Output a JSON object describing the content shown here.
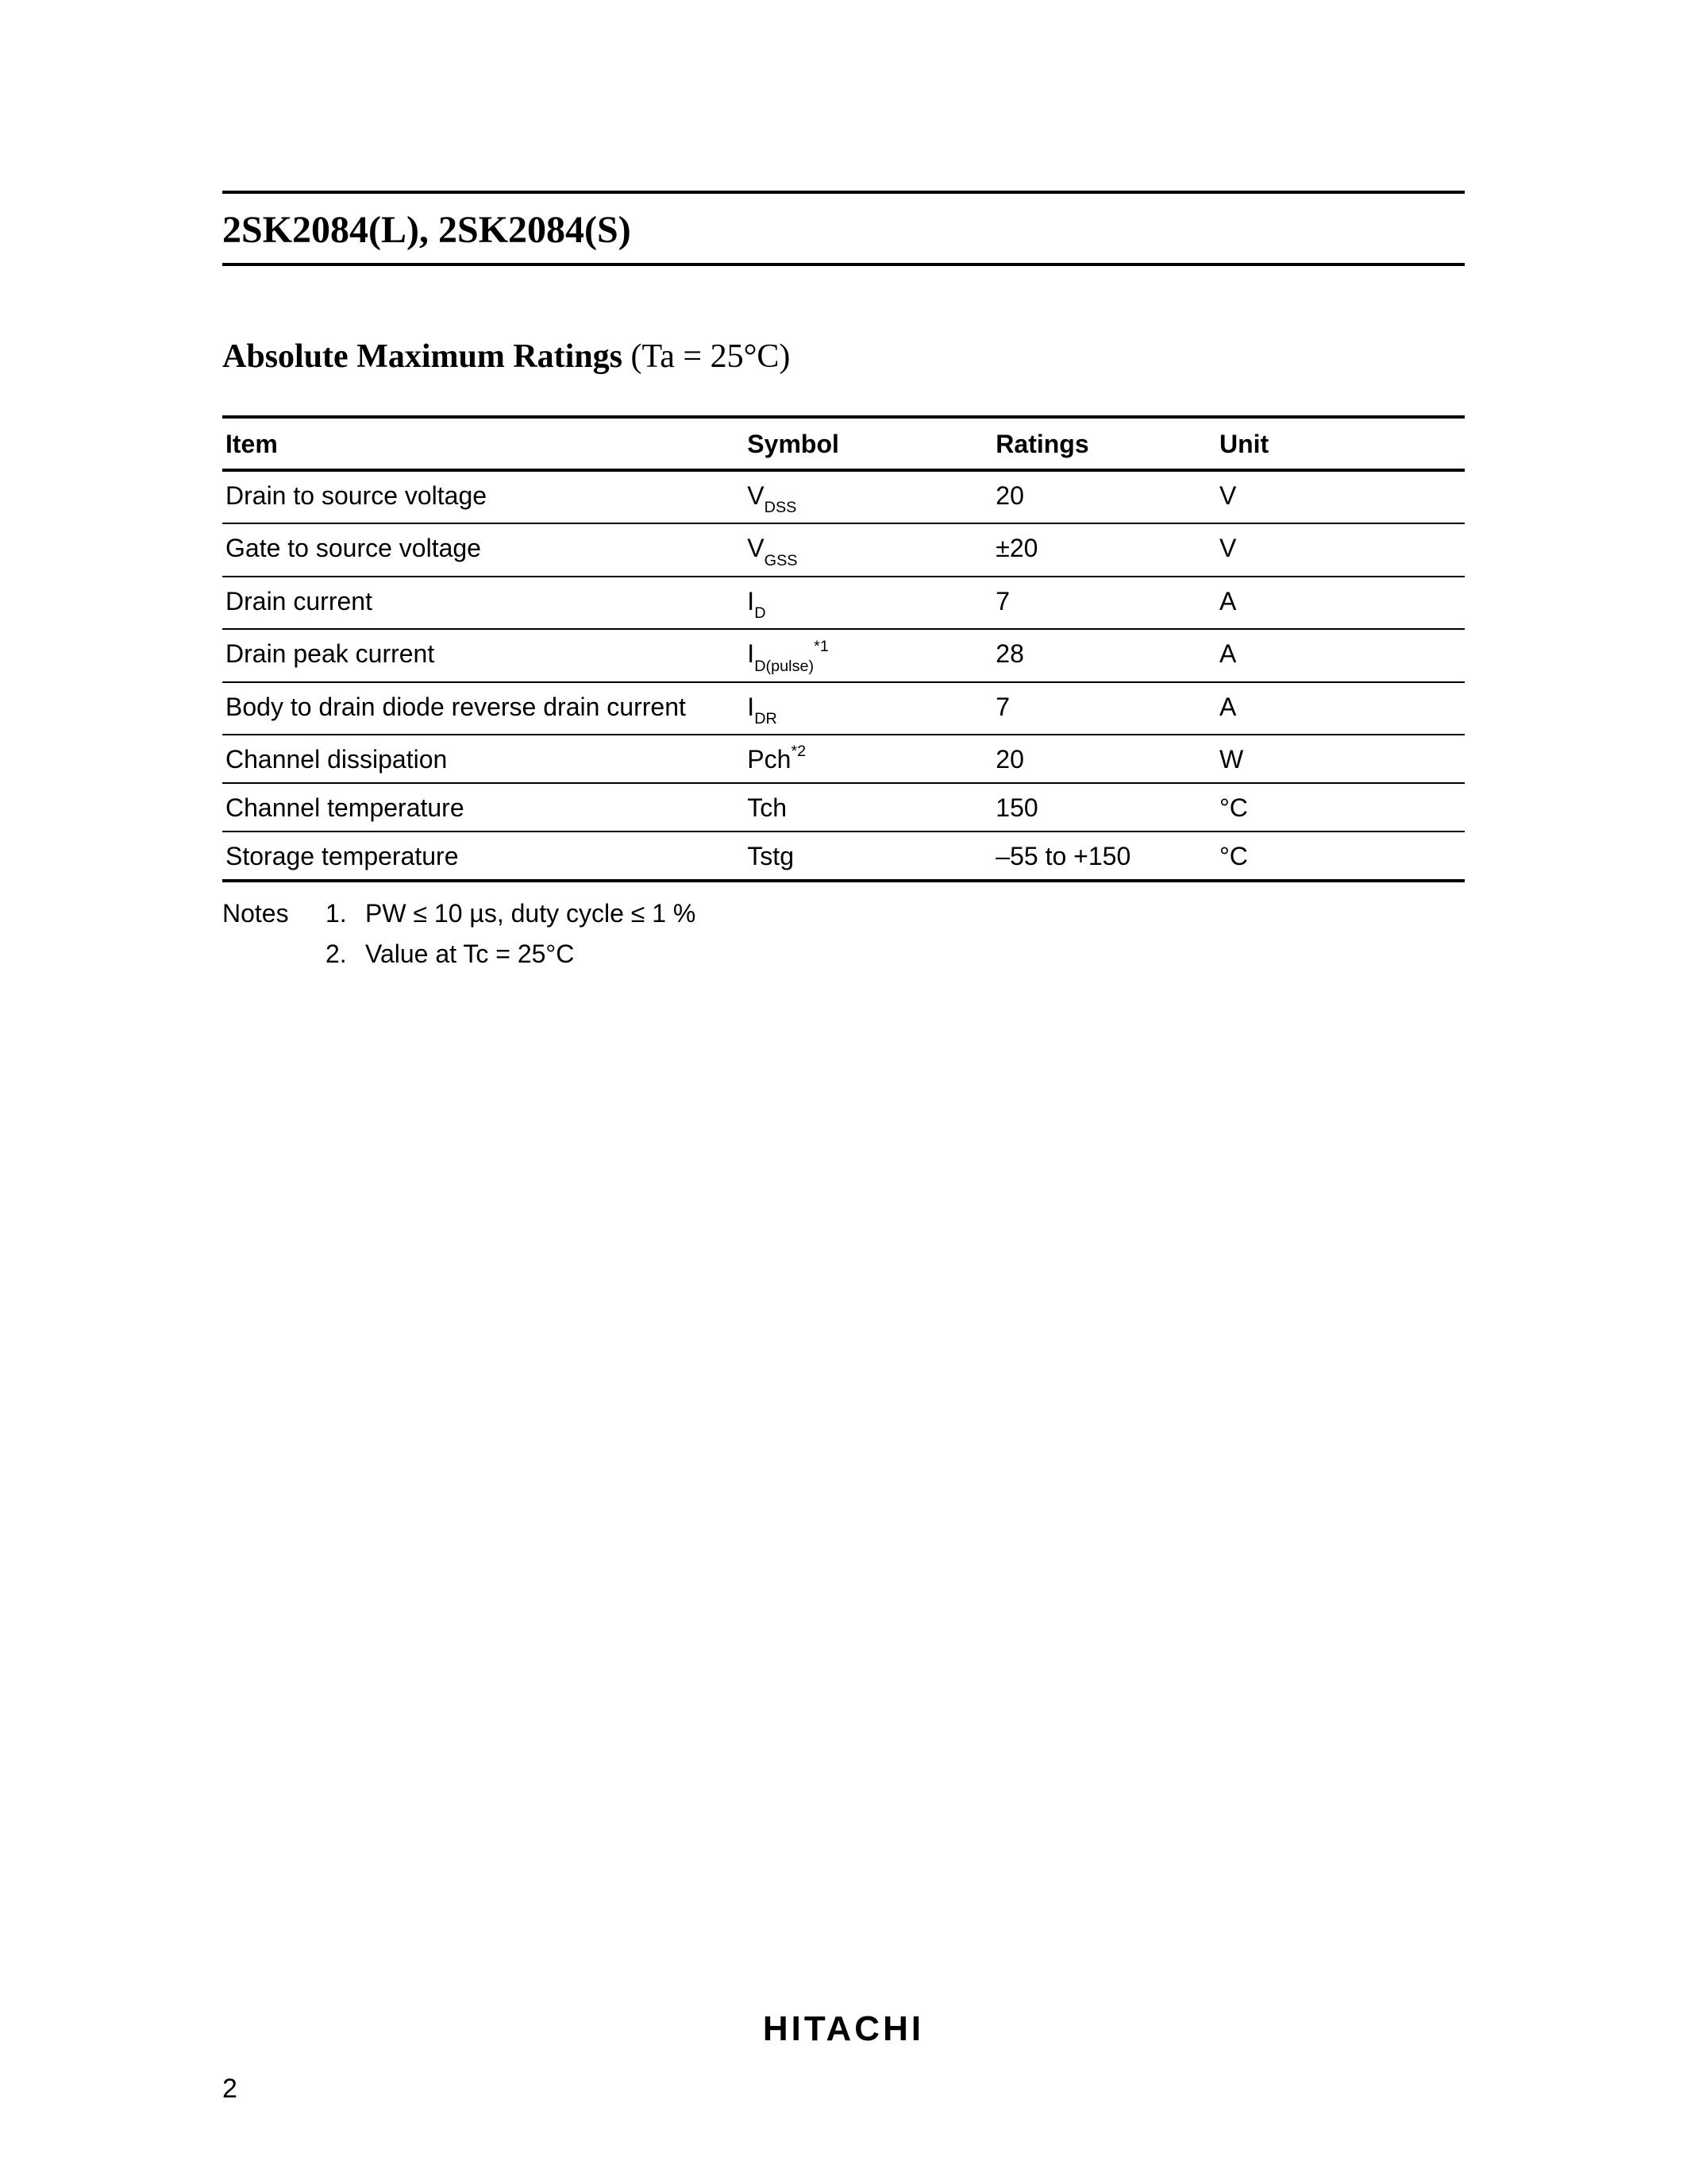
{
  "header": {
    "part_title": "2SK2084(L), 2SK2084(S)"
  },
  "section": {
    "title_bold": "Absolute Maximum Ratings",
    "title_cond": " (Ta = 25°C)"
  },
  "table": {
    "columns": [
      "Item",
      "Symbol",
      "Ratings",
      "Unit"
    ],
    "col_widths_pct": [
      42,
      20,
      18,
      20
    ],
    "header_border_color": "#000000",
    "row_border_color": "#000000",
    "header_fontsize": 32,
    "cell_fontsize": 32,
    "rows": [
      {
        "item": "Drain to source voltage",
        "symbol_main": "V",
        "symbol_sub": "DSS",
        "symbol_sup": "",
        "ratings": "20",
        "unit": "V"
      },
      {
        "item": "Gate to source voltage",
        "symbol_main": "V",
        "symbol_sub": "GSS",
        "symbol_sup": "",
        "ratings": "±20",
        "unit": "V"
      },
      {
        "item": "Drain current",
        "symbol_main": "I",
        "symbol_sub": "D",
        "symbol_sup": "",
        "ratings": "7",
        "unit": "A"
      },
      {
        "item": "Drain peak current",
        "symbol_main": "I",
        "symbol_sub": "D(pulse)",
        "symbol_sup": "*1",
        "ratings": "28",
        "unit": "A"
      },
      {
        "item": "Body to drain diode reverse drain current",
        "symbol_main": "I",
        "symbol_sub": "DR",
        "symbol_sup": "",
        "ratings": "7",
        "unit": "A"
      },
      {
        "item": "Channel dissipation",
        "symbol_main": "Pch",
        "symbol_sub": "",
        "symbol_sup": "*2",
        "ratings": "20",
        "unit": "W"
      },
      {
        "item": "Channel temperature",
        "symbol_main": "Tch",
        "symbol_sub": "",
        "symbol_sup": "",
        "ratings": "150",
        "unit": "°C"
      },
      {
        "item": "Storage temperature",
        "symbol_main": "Tstg",
        "symbol_sub": "",
        "symbol_sup": "",
        "ratings": "–55 to +150",
        "unit": "°C"
      }
    ]
  },
  "notes": {
    "label": "Notes",
    "items": [
      {
        "num": "1.",
        "text": "PW ≤ 10 µs, duty cycle ≤ 1 %"
      },
      {
        "num": "2.",
        "text": "Value at Tc = 25°C"
      }
    ]
  },
  "footer": {
    "brand": "HITACHI",
    "page_number": "2"
  },
  "style": {
    "page_bg": "#ffffff",
    "text_color": "#000000",
    "title_fontsize": 48,
    "section_fontsize": 42,
    "notes_fontsize": 32,
    "brand_fontsize": 44
  }
}
